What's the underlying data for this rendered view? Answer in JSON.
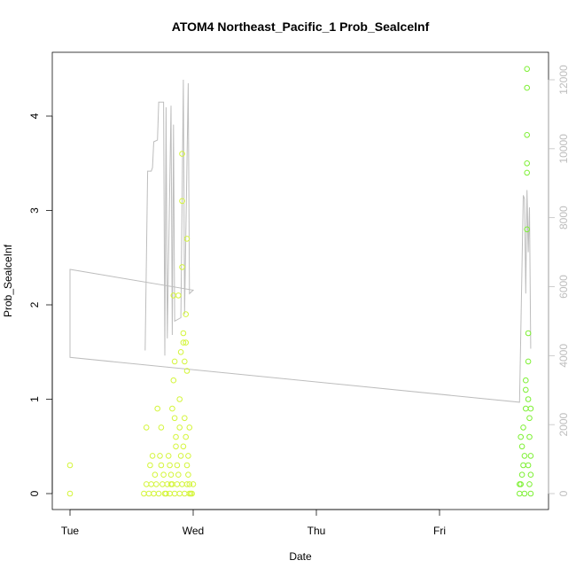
{
  "chart_data": {
    "type": "scatter",
    "title": "ATOM4 Northeast_Pacific_1 Prob_SealceInf",
    "xlabel": "Date",
    "ylabel": "Prob_SealceInf",
    "xlim": [
      0,
      3.75
    ],
    "ylim": [
      -0.15,
      4.73
    ],
    "x_ticks": [
      {
        "value": 0,
        "label": "Tue"
      },
      {
        "value": 1,
        "label": "Wed"
      },
      {
        "value": 2,
        "label": "Thu"
      },
      {
        "value": 3,
        "label": "Fri"
      }
    ],
    "y_ticks": [
      0,
      1,
      2,
      3,
      4
    ],
    "y2_ticks": [
      0,
      2000,
      4000,
      6000,
      8000,
      10000,
      12000
    ],
    "y2lim": [
      -400,
      12850
    ],
    "grid": false,
    "colors": {
      "early_points": "#d4f53a",
      "late_points": "#7df033",
      "overlay_line": "#bdbdbd",
      "axis": "#000000",
      "secondary_axis": "#bdbdbd"
    },
    "series": [
      {
        "points": [
          [
            0.0,
            0.0
          ],
          [
            0.0,
            0.3
          ],
          [
            0.62,
            0.7
          ],
          [
            0.65,
            0.3
          ],
          [
            0.67,
            0.4
          ],
          [
            0.69,
            0.2
          ],
          [
            0.71,
            0.9
          ],
          [
            0.73,
            0.4
          ],
          [
            0.74,
            0.3
          ],
          [
            0.74,
            0.7
          ],
          [
            0.76,
            0.2
          ],
          [
            0.78,
            0.0
          ],
          [
            0.8,
            0.4
          ],
          [
            0.81,
            0.3
          ],
          [
            0.82,
            0.2
          ],
          [
            0.82,
            0.1
          ],
          [
            0.83,
            0.9
          ],
          [
            0.84,
            1.2
          ],
          [
            0.84,
            2.1
          ],
          [
            0.85,
            0.8
          ],
          [
            0.85,
            1.4
          ],
          [
            0.86,
            0.5
          ],
          [
            0.86,
            0.6
          ],
          [
            0.87,
            0.3
          ],
          [
            0.88,
            0.2
          ],
          [
            0.88,
            2.1
          ],
          [
            0.89,
            0.7
          ],
          [
            0.89,
            1.0
          ],
          [
            0.9,
            0.4
          ],
          [
            0.9,
            1.5
          ],
          [
            0.91,
            3.6
          ],
          [
            0.91,
            3.1
          ],
          [
            0.91,
            2.4
          ],
          [
            0.92,
            1.7
          ],
          [
            0.92,
            1.6
          ],
          [
            0.92,
            0.5
          ],
          [
            0.93,
            1.4
          ],
          [
            0.93,
            0.8
          ],
          [
            0.94,
            0.6
          ],
          [
            0.94,
            1.6
          ],
          [
            0.94,
            1.9
          ],
          [
            0.95,
            2.7
          ],
          [
            0.95,
            1.3
          ],
          [
            0.95,
            0.3
          ],
          [
            0.96,
            0.2
          ],
          [
            0.96,
            0.4
          ],
          [
            0.97,
            0.7
          ],
          [
            0.97,
            0.1
          ],
          [
            0.98,
            0.0
          ],
          [
            1.0,
            0.1
          ],
          [
            0.6,
            0.0
          ],
          [
            0.62,
            0.1
          ],
          [
            0.64,
            0.0
          ],
          [
            0.66,
            0.1
          ],
          [
            0.68,
            0.0
          ],
          [
            0.7,
            0.1
          ],
          [
            0.72,
            0.0
          ],
          [
            0.75,
            0.1
          ],
          [
            0.77,
            0.0
          ],
          [
            0.79,
            0.1
          ],
          [
            0.81,
            0.0
          ],
          [
            0.83,
            0.1
          ],
          [
            0.85,
            0.0
          ],
          [
            0.87,
            0.1
          ],
          [
            0.89,
            0.0
          ],
          [
            0.91,
            0.1
          ],
          [
            0.93,
            0.0
          ],
          [
            0.95,
            0.1
          ],
          [
            0.97,
            0.0
          ],
          [
            0.99,
            0.0
          ]
        ]
      },
      {
        "points": [
          [
            3.65,
            0.0
          ],
          [
            3.65,
            0.1
          ],
          [
            3.66,
            0.6
          ],
          [
            3.67,
            0.5
          ],
          [
            3.67,
            0.2
          ],
          [
            3.68,
            0.3
          ],
          [
            3.68,
            0.7
          ],
          [
            3.69,
            0.4
          ],
          [
            3.69,
            0.0
          ],
          [
            3.7,
            1.2
          ],
          [
            3.7,
            1.1
          ],
          [
            3.7,
            0.9
          ],
          [
            3.71,
            4.5
          ],
          [
            3.71,
            4.3
          ],
          [
            3.71,
            3.8
          ],
          [
            3.71,
            3.5
          ],
          [
            3.71,
            3.4
          ],
          [
            3.71,
            2.8
          ],
          [
            3.72,
            1.7
          ],
          [
            3.72,
            1.4
          ],
          [
            3.72,
            1.0
          ],
          [
            3.73,
            0.8
          ],
          [
            3.73,
            0.6
          ],
          [
            3.73,
            0.1
          ],
          [
            3.74,
            0.9
          ],
          [
            3.74,
            0.4
          ],
          [
            3.74,
            0.2
          ],
          [
            3.74,
            0.0
          ],
          [
            3.72,
            0.3
          ],
          [
            3.66,
            0.1
          ]
        ]
      }
    ],
    "secondary_series": {
      "points": [
        [
          0.61,
          4150
        ],
        [
          0.63,
          9350
        ],
        [
          0.66,
          9350
        ],
        [
          0.67,
          9450
        ],
        [
          0.68,
          10200
        ],
        [
          0.71,
          10250
        ],
        [
          0.72,
          11350
        ],
        [
          0.76,
          11350
        ],
        [
          0.77,
          4000
        ],
        [
          0.78,
          11200
        ],
        [
          0.79,
          4500
        ],
        [
          0.82,
          11250
        ],
        [
          0.83,
          4600
        ],
        [
          0.84,
          10700
        ],
        [
          0.85,
          5000
        ],
        [
          0.9,
          5100
        ],
        [
          0.92,
          12000
        ],
        [
          0.93,
          5200
        ],
        [
          0.96,
          11900
        ],
        [
          0.97,
          5800
        ],
        [
          1.0,
          5900
        ],
        [
          0.0,
          6500
        ],
        [
          0.0,
          3950
        ],
        [
          3.65,
          2650
        ],
        [
          3.68,
          8650
        ],
        [
          3.69,
          8550
        ],
        [
          3.7,
          5800
        ],
        [
          3.71,
          8800
        ],
        [
          3.72,
          7000
        ],
        [
          3.73,
          8300
        ],
        [
          3.74,
          4200
        ]
      ]
    }
  }
}
